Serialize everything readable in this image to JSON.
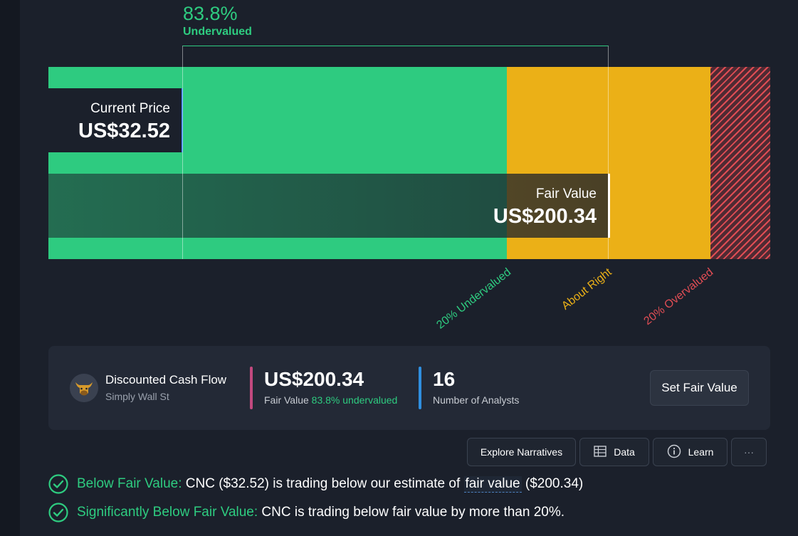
{
  "valuation": {
    "difference_percent": "83.8%",
    "difference_label": "Undervalued",
    "current_price_label": "Current Price",
    "current_price_value": "US$32.52",
    "fair_value_label": "Fair Value",
    "fair_value_value": "US$200.34",
    "zone_labels": {
      "undervalued": "20% Undervalued",
      "about_right": "About Right",
      "overvalued": "20% Overvalued"
    },
    "colors": {
      "undervalued": "#2ecb80",
      "about_right": "#ebb017",
      "overvalued": "#e04d54"
    }
  },
  "summary_card": {
    "model_title": "Discounted Cash Flow",
    "model_source": "Simply Wall St",
    "fair_value": "US$200.34",
    "fair_value_caption": "Fair Value",
    "fair_value_status": "83.8% undervalued",
    "analysts_count": "16",
    "analysts_caption": "Number of Analysts",
    "set_fair_value_button": "Set Fair Value"
  },
  "toolbar": {
    "explore_narratives": "Explore Narratives",
    "data": "Data",
    "learn": "Learn",
    "more": "···"
  },
  "checks": [
    {
      "title": "Below Fair Value:",
      "text_before": " CNC ($32.52) is trading below our estimate of ",
      "link_text": "fair value",
      "text_after": " ($200.34)"
    },
    {
      "title": "Significantly Below Fair Value:",
      "text": " CNC is trading below fair value by more than 20%."
    }
  ]
}
